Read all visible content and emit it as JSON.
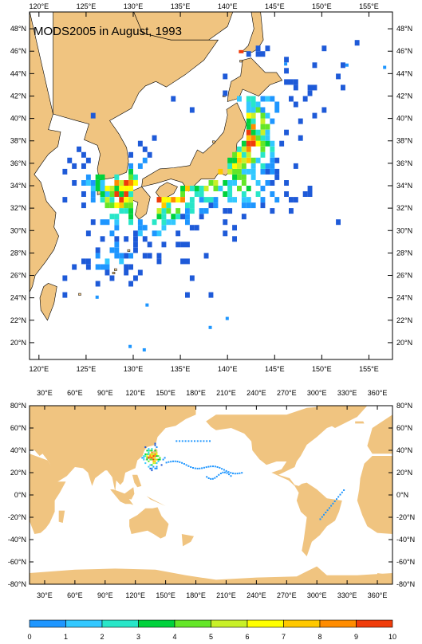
{
  "title": "MODS2005 in August, 1993",
  "colors": {
    "land": "#f0c480",
    "ocean": "#ffffff",
    "frame": "#000000"
  },
  "top_map": {
    "lon_labels": [
      "120°E",
      "125°E",
      "130°E",
      "135°E",
      "140°E",
      "145°E",
      "150°E",
      "155°E"
    ],
    "lat_labels": [
      "48°N",
      "46°N",
      "44°N",
      "42°N",
      "40°N",
      "38°N",
      "36°N",
      "34°N",
      "32°N",
      "30°N",
      "28°N",
      "26°N",
      "24°N",
      "22°N",
      "20°N"
    ],
    "lon_range": [
      119,
      157.5
    ],
    "lat_range": [
      18.5,
      49.5
    ]
  },
  "bottom_map": {
    "lon_labels": [
      "30°E",
      "60°E",
      "90°E",
      "120°E",
      "150°E",
      "180°E",
      "210°E",
      "240°E",
      "270°E",
      "300°E",
      "330°E",
      "360°E"
    ],
    "lat_labels": [
      "80°N",
      "60°N",
      "40°N",
      "20°N",
      "0°N",
      "-20°N",
      "-40°N",
      "-60°N",
      "-80°N"
    ],
    "lon_range": [
      15,
      375
    ],
    "lat_range": [
      -80,
      80
    ]
  },
  "colorbar": {
    "labels": [
      "0",
      "1",
      "2",
      "3",
      "4",
      "5",
      "6",
      "7",
      "8",
      "9",
      "10"
    ],
    "colors": [
      "#1e5ad8",
      "#1e96ff",
      "#32c8ff",
      "#28e6c8",
      "#00d23c",
      "#64e628",
      "#c8f028",
      "#ffff00",
      "#ffc800",
      "#ff8c00",
      "#f03c0a"
    ]
  }
}
